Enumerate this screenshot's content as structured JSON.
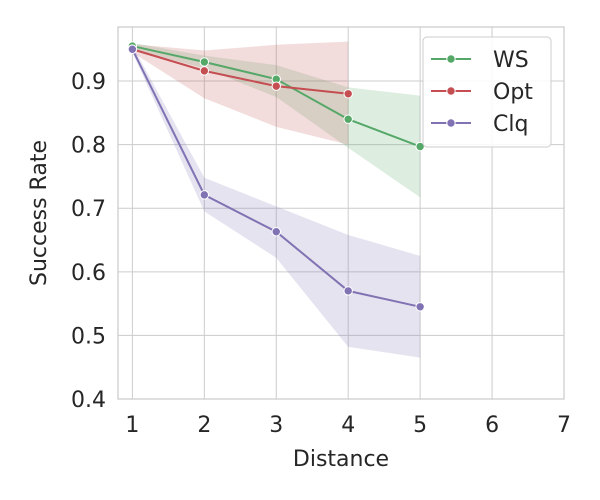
{
  "chart_data": {
    "type": "line",
    "xlabel": "Distance",
    "ylabel": "Success Rate",
    "xlim": [
      0.8,
      7
    ],
    "ylim": [
      0.4,
      0.985
    ],
    "xticks": [
      1,
      2,
      3,
      4,
      5,
      6,
      7
    ],
    "yticks": [
      0.4,
      0.5,
      0.6,
      0.7,
      0.8,
      0.9
    ],
    "grid": true,
    "legend_position": "top-right",
    "series": [
      {
        "name": "WS",
        "color": "#55a868",
        "x": [
          1,
          2,
          3,
          4,
          5
        ],
        "y": [
          0.955,
          0.93,
          0.903,
          0.84,
          0.797
        ],
        "lower": [
          0.95,
          0.92,
          0.875,
          0.795,
          0.717
        ],
        "upper": [
          0.96,
          0.94,
          0.925,
          0.89,
          0.877
        ]
      },
      {
        "name": "Opt",
        "color": "#c44e52",
        "x": [
          1,
          2,
          3,
          4
        ],
        "y": [
          0.95,
          0.916,
          0.892,
          0.88
        ],
        "lower": [
          0.945,
          0.873,
          0.828,
          0.8
        ],
        "upper": [
          0.958,
          0.948,
          0.957,
          0.962
        ]
      },
      {
        "name": "Clq",
        "color": "#8172b3",
        "x": [
          1,
          2,
          3,
          4,
          5
        ],
        "y": [
          0.95,
          0.721,
          0.663,
          0.57,
          0.545
        ],
        "lower": [
          0.945,
          0.695,
          0.622,
          0.482,
          0.465
        ],
        "upper": [
          0.956,
          0.748,
          0.703,
          0.658,
          0.625
        ]
      }
    ]
  }
}
